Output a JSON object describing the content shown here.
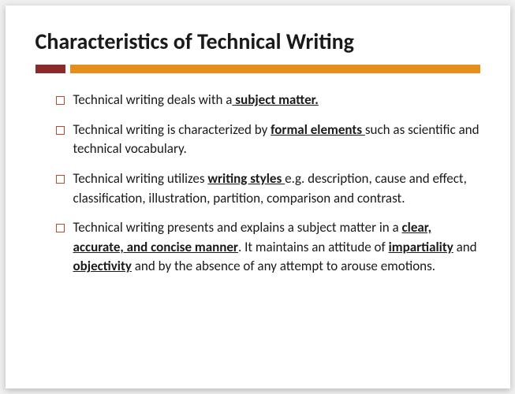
{
  "title": "Characteristics of Technical Writing",
  "colors": {
    "background": "#ffffff",
    "text": "#1a1a1a",
    "divider_accent": "#8b2a2a",
    "divider_main": "#e58e1a",
    "bullet_border": "#c04830"
  },
  "typography": {
    "title_fontsize": 28,
    "title_weight": "bold",
    "body_fontsize": 17,
    "font_family": "Calibri"
  },
  "bullets": [
    {
      "pre1": "Technical writing deals with a",
      "emph1": " subject matter."
    },
    {
      "pre1": "Technical writing is characterized by ",
      "emph1": "formal elements ",
      "post1": "such as scientific and technical vocabulary."
    },
    {
      "pre1": "Technical writing utilizes ",
      "emph1": "writing styles ",
      "post1": "e.g. description, cause and effect, classification, illustration, partition, comparison and contrast."
    },
    {
      "pre1": "Technical writing presents and explains a subject matter in a ",
      "emph1": "clear, accurate, and concise manner",
      "mid1": ". It maintains an attitude of ",
      "emph2": "impartiality",
      "mid2": " and ",
      "emph3": "objectivity",
      "post1": " and by the absence of any attempt to arouse emotions."
    }
  ]
}
